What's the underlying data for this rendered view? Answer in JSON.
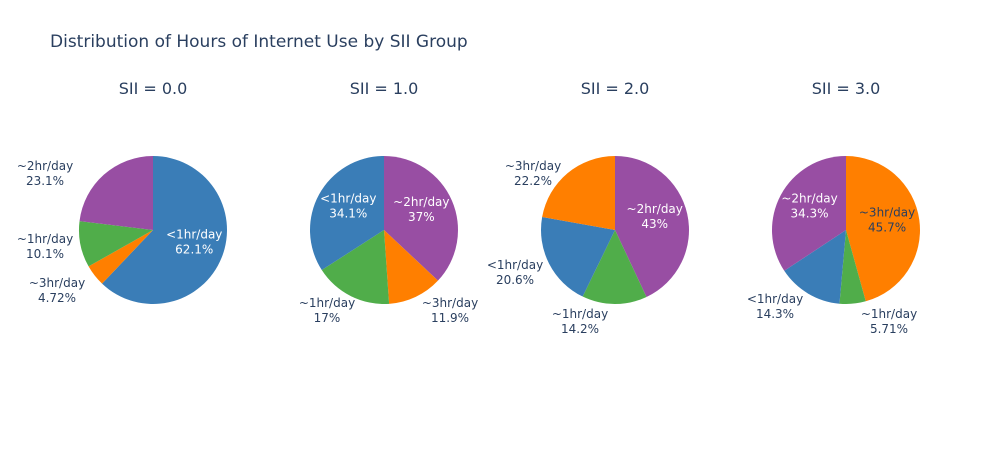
{
  "chart_data": {
    "type": "pie",
    "title": "Distribution of Hours of Internet Use by SII Group",
    "colors": {
      "<1hr/day": "#3a7db7",
      "~1hr/day": "#50ad4a",
      "~2hr/day": "#984ea3",
      "~3hr/day": "#ff7f00"
    },
    "text_colors": {
      "inside": "#ffffff",
      "outside": "#2a3f5f",
      "inside_dark": "#2a3f5f"
    },
    "pies": [
      {
        "title": "SII = 0.0",
        "slices": [
          {
            "label": "<1hr/day",
            "percent": 62.1,
            "text": "62.1%",
            "inside": true
          },
          {
            "label": "~3hr/day",
            "percent": 4.72,
            "text": "4.72%",
            "inside": false
          },
          {
            "label": "~1hr/day",
            "percent": 10.1,
            "text": "10.1%",
            "inside": false
          },
          {
            "label": "~2hr/day",
            "percent": 23.1,
            "text": "23.1%",
            "inside": false
          }
        ]
      },
      {
        "title": "SII = 1.0",
        "slices": [
          {
            "label": "~2hr/day",
            "percent": 37,
            "text": "37%",
            "inside": true
          },
          {
            "label": "~3hr/day",
            "percent": 11.9,
            "text": "11.9%",
            "inside": false
          },
          {
            "label": "~1hr/day",
            "percent": 17,
            "text": "17%",
            "inside": false
          },
          {
            "label": "<1hr/day",
            "percent": 34.1,
            "text": "34.1%",
            "inside": true
          }
        ]
      },
      {
        "title": "SII = 2.0",
        "slices": [
          {
            "label": "~2hr/day",
            "percent": 43,
            "text": "43%",
            "inside": true
          },
          {
            "label": "~1hr/day",
            "percent": 14.2,
            "text": "14.2%",
            "inside": false
          },
          {
            "label": "<1hr/day",
            "percent": 20.6,
            "text": "20.6%",
            "inside": false
          },
          {
            "label": "~3hr/day",
            "percent": 22.2,
            "text": "22.2%",
            "inside": false
          }
        ]
      },
      {
        "title": "SII = 3.0",
        "slices": [
          {
            "label": "~3hr/day",
            "percent": 45.7,
            "text": "45.7%",
            "inside": true,
            "dark_text": true
          },
          {
            "label": "~1hr/day",
            "percent": 5.71,
            "text": "5.71%",
            "inside": false
          },
          {
            "label": "<1hr/day",
            "percent": 14.3,
            "text": "14.3%",
            "inside": false
          },
          {
            "label": "~2hr/day",
            "percent": 34.3,
            "text": "34.3%",
            "inside": true
          }
        ]
      }
    ]
  }
}
